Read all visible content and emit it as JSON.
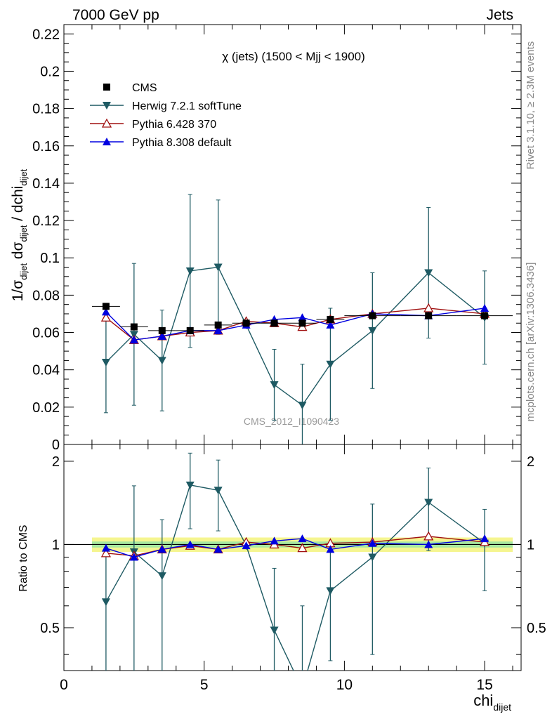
{
  "header": {
    "left": "7000 GeV pp",
    "right": "Jets"
  },
  "side_labels": {
    "rivet": "Rivet 3.1.10, ≥ 2.3M events",
    "mcplots": "mcplots.cern.ch [arXiv:1306.3436]"
  },
  "watermark": "CMS_2012_I1090423",
  "colors": {
    "cms": "#000000",
    "herwig": "#1e5a63",
    "pythia6": "#a01010",
    "pythia8": "#0000e0",
    "band_outer": "#f5f590",
    "band_inner": "#a8e8a0"
  },
  "chart_data": [
    {
      "type": "scatter",
      "title": "χ (jets) (1500 < Mjj < 1900)",
      "ylabel": "1/σ_dijet dσ_dijet / dchi_dijet",
      "xlabel": "chi_dijet",
      "xlim": [
        0,
        16.3
      ],
      "ylim": [
        0,
        0.225
      ],
      "yticks": [
        "0",
        "0.02",
        "0.04",
        "0.06",
        "0.08",
        "0.1",
        "0.12",
        "0.14",
        "0.16",
        "0.18",
        "0.2",
        "0.22"
      ],
      "legend_position": "top-left",
      "x": [
        1.5,
        2.5,
        3.5,
        4.5,
        5.5,
        6.5,
        7.5,
        8.5,
        9.5,
        11,
        13,
        15
      ],
      "xerr": [
        [
          1,
          2
        ],
        [
          2,
          3
        ],
        [
          3,
          4
        ],
        [
          4,
          5
        ],
        [
          5,
          6
        ],
        [
          6,
          7
        ],
        [
          7,
          8
        ],
        [
          8,
          9
        ],
        [
          9,
          10
        ],
        [
          10,
          12
        ],
        [
          12,
          14
        ],
        [
          14,
          16
        ]
      ],
      "series": [
        {
          "name": "CMS",
          "marker": "square",
          "values": [
            0.074,
            0.063,
            0.061,
            0.061,
            0.064,
            0.065,
            0.065,
            0.065,
            0.067,
            0.069,
            0.069,
            0.069
          ],
          "err": [
            0.001,
            0.001,
            0.001,
            0.001,
            0.001,
            0.001,
            0.001,
            0.001,
            0.001,
            0.001,
            0.001,
            0.001
          ]
        },
        {
          "name": "Herwig 7.2.1 softTune",
          "marker": "triangle-down",
          "values": [
            0.044,
            0.059,
            0.045,
            0.093,
            0.095,
            0.064,
            0.032,
            0.021,
            0.043,
            0.061,
            0.092,
            0.068
          ],
          "err": [
            0.027,
            0.038,
            0.027,
            0.041,
            0.036,
            0.002,
            0.019,
            0.022,
            0.03,
            0.031,
            0.035,
            0.025
          ]
        },
        {
          "name": "Pythia 6.428 370",
          "marker": "triangle-up-open",
          "values": [
            0.068,
            0.056,
            0.058,
            0.06,
            0.061,
            0.066,
            0.065,
            0.063,
            0.067,
            0.07,
            0.073,
            0.07
          ],
          "err": [
            0.001,
            0.001,
            0.001,
            0.001,
            0.001,
            0.001,
            0.001,
            0.001,
            0.001,
            0.001,
            0.001,
            0.001
          ]
        },
        {
          "name": "Pythia 8.308 default",
          "marker": "triangle-up",
          "values": [
            0.071,
            0.056,
            0.058,
            0.061,
            0.061,
            0.064,
            0.067,
            0.068,
            0.064,
            0.07,
            0.069,
            0.073
          ],
          "err": [
            0.002,
            0.002,
            0.002,
            0.002,
            0.002,
            0.002,
            0.002,
            0.002,
            0.002,
            0.002,
            0.002,
            0.002
          ]
        }
      ]
    },
    {
      "type": "scatter",
      "ylabel": "Ratio to CMS",
      "xlabel": "chi_dijet",
      "xlim": [
        0,
        16.3
      ],
      "ylim": [
        0.35,
        2.3
      ],
      "yticks_left": [
        "0.5",
        "1",
        "2"
      ],
      "yticks_right": [
        "0.5",
        "1",
        "2"
      ],
      "xticks": [
        "0",
        "5",
        "10",
        "15"
      ],
      "x": [
        1.5,
        2.5,
        3.5,
        4.5,
        5.5,
        6.5,
        7.5,
        8.5,
        9.5,
        11,
        13,
        15
      ],
      "band": {
        "x_start": 1,
        "x_end": 16,
        "outer": 0.06,
        "inner": 0.025
      },
      "series": [
        {
          "name": "Herwig 7.2.1 softTune",
          "values": [
            0.62,
            0.94,
            0.77,
            1.64,
            1.57,
            0.99,
            0.49,
            0.3,
            0.68,
            0.9,
            1.42,
            1.01
          ],
          "err": [
            0.3,
            0.69,
            0.46,
            0.5,
            0.45,
            0.03,
            0.33,
            0.3,
            0.3,
            0.5,
            0.47,
            0.33
          ]
        },
        {
          "name": "Pythia 6.428 370",
          "values": [
            0.93,
            0.91,
            0.96,
            0.99,
            0.96,
            1.02,
            1.0,
            0.97,
            1.01,
            1.02,
            1.07,
            1.02
          ],
          "err": [
            0.015,
            0.015,
            0.015,
            0.015,
            0.015,
            0.015,
            0.015,
            0.015,
            0.015,
            0.015,
            0.015,
            0.015
          ]
        },
        {
          "name": "Pythia 8.308 default",
          "values": [
            0.97,
            0.9,
            0.96,
            1.0,
            0.96,
            0.99,
            1.03,
            1.05,
            0.96,
            1.01,
            1.0,
            1.05
          ],
          "err": [
            0.025,
            0.025,
            0.025,
            0.025,
            0.025,
            0.025,
            0.025,
            0.025,
            0.025,
            0.025,
            0.025,
            0.025
          ]
        }
      ]
    }
  ]
}
